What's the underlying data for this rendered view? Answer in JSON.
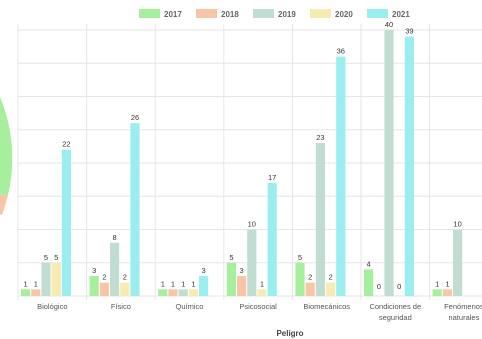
{
  "chart_data": {
    "type": "bar",
    "xlabel": "Peligro",
    "categories": [
      [
        "Biológico"
      ],
      [
        "Físico"
      ],
      [
        "Químico"
      ],
      [
        "Psicosocial"
      ],
      [
        "Biomecánicos"
      ],
      [
        "Condiciones de",
        "seguridad"
      ],
      [
        "Fenómenos",
        "naturales"
      ]
    ],
    "series": [
      {
        "name": "2017",
        "color": "#a6ef9c",
        "values": [
          1,
          3,
          1,
          5,
          5,
          4,
          1
        ]
      },
      {
        "name": "2018",
        "color": "#f8c5a6",
        "values": [
          1,
          2,
          1,
          3,
          2,
          0,
          1
        ]
      },
      {
        "name": "2019",
        "color": "#c1ddd2",
        "values": [
          5,
          8,
          1,
          10,
          23,
          40,
          10
        ]
      },
      {
        "name": "2020",
        "color": "#f8ebb2",
        "values": [
          5,
          2,
          1,
          1,
          2,
          0,
          null
        ]
      },
      {
        "name": "2021",
        "color": "#9beef0",
        "values": [
          22,
          26,
          3,
          17,
          36,
          39,
          null
        ]
      }
    ],
    "ylim": [
      0,
      40
    ],
    "grid": true,
    "legend": "top"
  }
}
